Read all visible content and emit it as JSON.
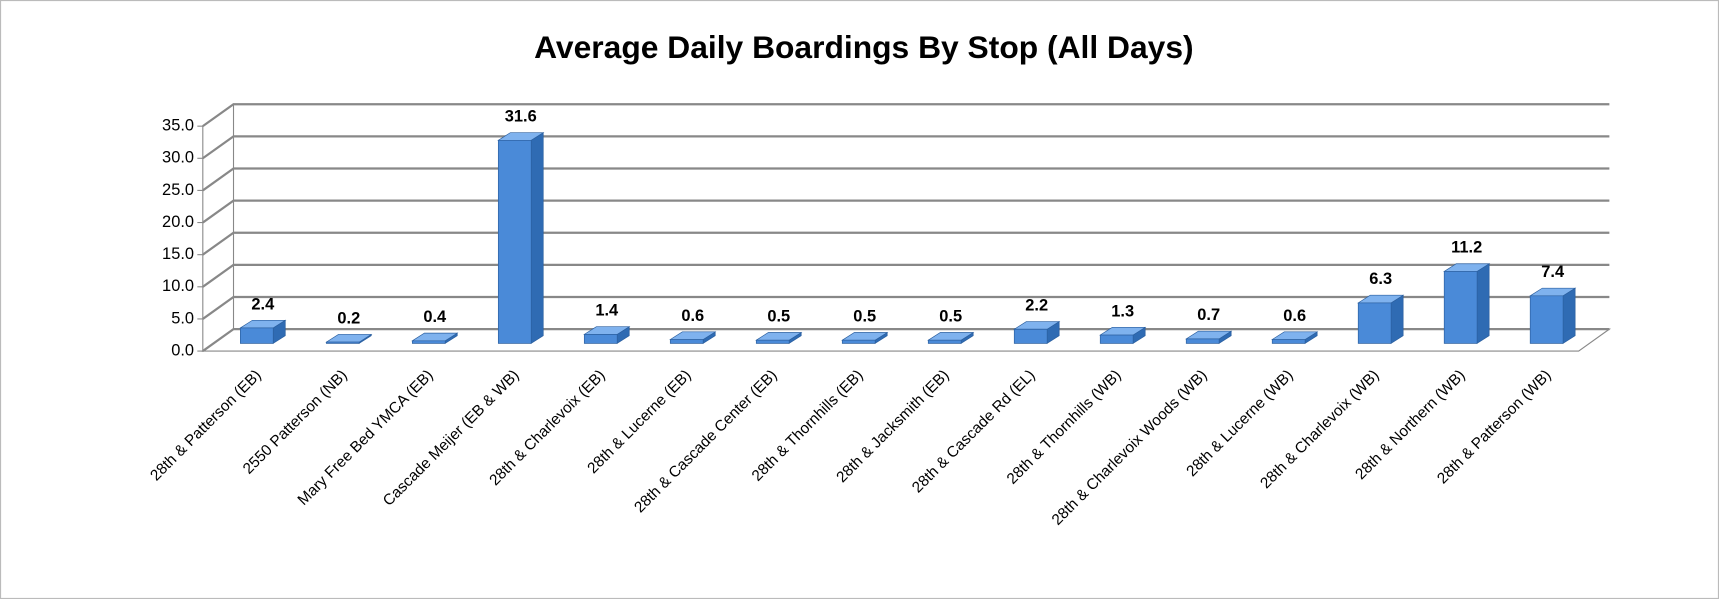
{
  "chart_data": {
    "type": "bar3d",
    "title": "Average Daily Boardings By Stop (All Days)",
    "categories": [
      "28th & Patterson (EB)",
      "2550 Patterson (NB)",
      "Mary Free Bed YMCA (EB)",
      "Cascade Meijer (EB & WB)",
      "28th & Charlevoix (EB)",
      "28th & Lucerne (EB)",
      "28th & Cascade Center (EB)",
      "28th & Thornhills (EB)",
      "28th & Jacksmith (EB)",
      "28th & Cascade Rd (EL)",
      "28th & Thornhills (WB)",
      "28th & Charlevoix Woods (WB)",
      "28th & Lucerne (WB)",
      "28th & Charlevoix (WB)",
      "28th & Northern (WB)",
      "28th & Patterson (WB)"
    ],
    "values": [
      2.4,
      0.2,
      0.4,
      31.6,
      1.4,
      0.6,
      0.5,
      0.5,
      0.5,
      2.2,
      1.3,
      0.7,
      0.6,
      6.3,
      11.2,
      7.4
    ],
    "color": "#4a8ad8",
    "ylim": [
      0,
      35
    ],
    "yticks": [
      {
        "value": 0,
        "label": "0.0"
      },
      {
        "value": 5,
        "label": "5.0"
      },
      {
        "value": 10,
        "label": "10.0"
      },
      {
        "value": 15,
        "label": "15.0"
      },
      {
        "value": 20,
        "label": "20.0"
      },
      {
        "value": 25,
        "label": "25.0"
      },
      {
        "value": 30,
        "label": "30.0"
      },
      {
        "value": 35,
        "label": "35.0"
      }
    ],
    "grid": true
  }
}
